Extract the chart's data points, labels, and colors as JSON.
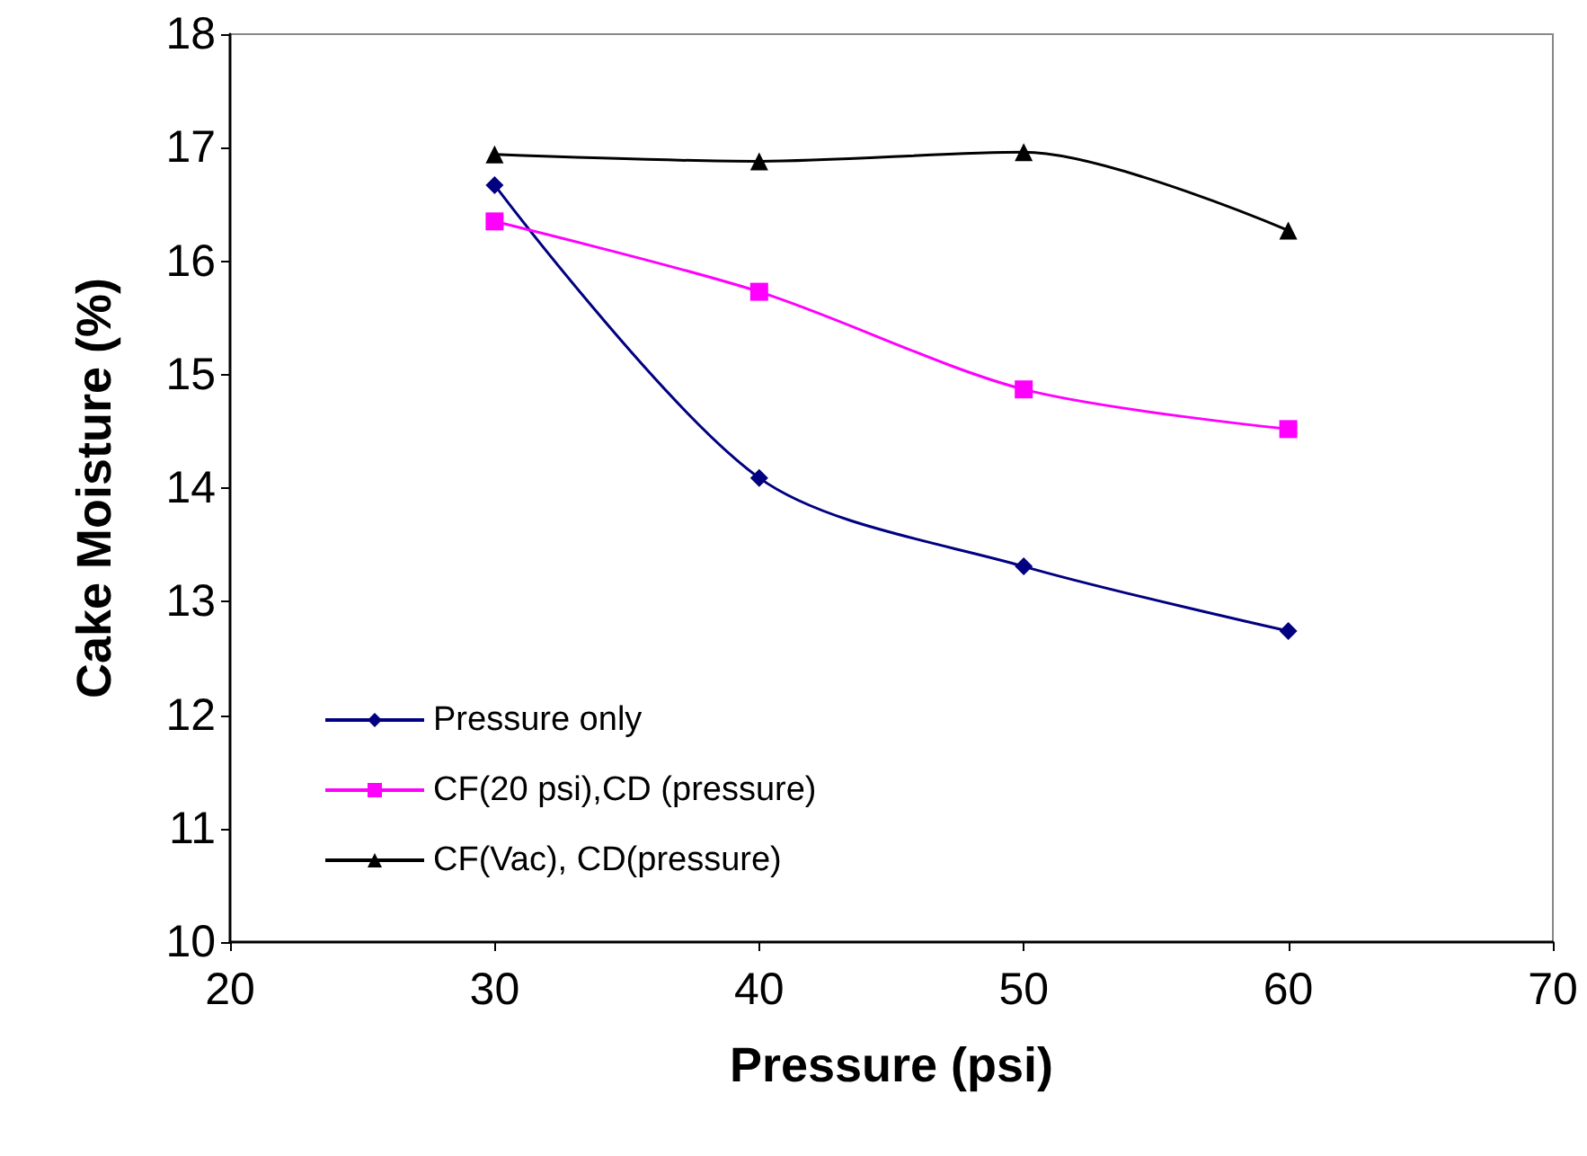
{
  "chart_data": {
    "type": "line",
    "xlabel": "Pressure (psi)",
    "ylabel": "Cake Moisture (%)",
    "x": [
      30,
      40,
      50,
      60
    ],
    "series": [
      {
        "name": "Pressure only",
        "color": "#000080",
        "marker": "diamond",
        "values": [
          16.67,
          14.09,
          13.31,
          12.74
        ]
      },
      {
        "name": "CF(20 psi),CD (pressure)",
        "color": "#ff00ff",
        "marker": "square",
        "values": [
          16.35,
          15.73,
          14.87,
          14.52
        ]
      },
      {
        "name": "CF(Vac), CD(pressure)",
        "color": "#000000",
        "marker": "triangle",
        "values": [
          16.94,
          16.88,
          16.96,
          16.27
        ]
      }
    ],
    "xlim": [
      20,
      70
    ],
    "xticks": [
      20,
      30,
      40,
      50,
      60,
      70
    ],
    "ylim": [
      10,
      18
    ],
    "yticks": [
      10,
      11,
      12,
      13,
      14,
      15,
      16,
      17,
      18
    ],
    "grid": false,
    "legend": "bottom left",
    "line_style": "solid"
  }
}
